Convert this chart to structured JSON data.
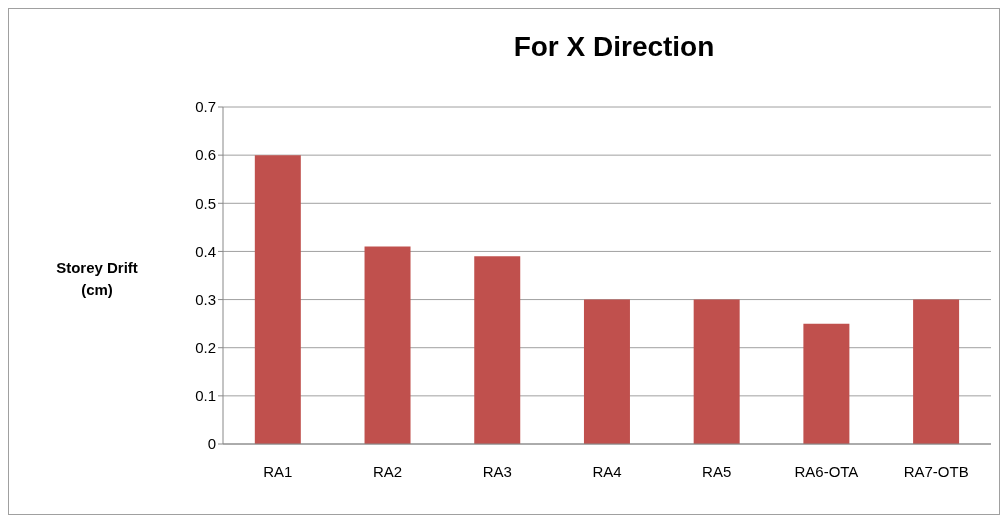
{
  "chart_data": {
    "type": "bar",
    "title": "For X Direction",
    "ylabel": "Storey Drift (cm)",
    "categories": [
      "RA1",
      "RA2",
      "RA3",
      "RA4",
      "RA5",
      "RA6-OTA",
      "RA7-OTB"
    ],
    "values": [
      0.6,
      0.41,
      0.39,
      0.3,
      0.3,
      0.25,
      0.3
    ],
    "color": "#c0504d",
    "ylim": [
      0,
      0.7
    ],
    "yticks": [
      0,
      0.1,
      0.2,
      0.3,
      0.4,
      0.5,
      0.6,
      0.7
    ],
    "grid": "y"
  }
}
